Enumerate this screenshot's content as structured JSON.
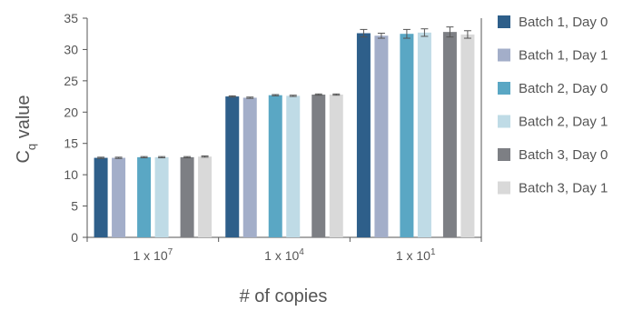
{
  "chart_data": {
    "type": "bar",
    "title": "",
    "xlabel": "# of copies",
    "ylabel_main": "C",
    "ylabel_sub": "q",
    "ylabel_rest": " value",
    "ylim": [
      0,
      35
    ],
    "yticks": [
      0,
      5,
      10,
      15,
      20,
      25,
      30,
      35
    ],
    "grid": false,
    "legend_position": "right",
    "categories": [
      {
        "base": "1 x 10",
        "exp": "7"
      },
      {
        "base": "1 x 10",
        "exp": "4"
      },
      {
        "base": "1 x 10",
        "exp": "1"
      }
    ],
    "series": [
      {
        "name": "Batch 1, Day 0",
        "color": "#2e5f8a",
        "values": [
          12.7,
          22.5,
          32.6
        ],
        "errors": [
          0.1,
          0.1,
          0.6
        ]
      },
      {
        "name": "Batch 1, Day 1",
        "color": "#a3aec9",
        "values": [
          12.7,
          22.3,
          32.2
        ],
        "errors": [
          0.1,
          0.1,
          0.4
        ]
      },
      {
        "name": "Batch 2, Day 0",
        "color": "#5aa7c4",
        "values": [
          12.8,
          22.7,
          32.5
        ],
        "errors": [
          0.1,
          0.1,
          0.7
        ]
      },
      {
        "name": "Batch 2, Day 1",
        "color": "#bfdbe6",
        "values": [
          12.8,
          22.6,
          32.7
        ],
        "errors": [
          0.1,
          0.1,
          0.6
        ]
      },
      {
        "name": "Batch 3, Day 0",
        "color": "#7d7f84",
        "values": [
          12.8,
          22.8,
          32.8
        ],
        "errors": [
          0.1,
          0.1,
          0.8
        ]
      },
      {
        "name": "Batch 3, Day 1",
        "color": "#d9d9d9",
        "values": [
          12.9,
          22.8,
          32.4
        ],
        "errors": [
          0.1,
          0.1,
          0.6
        ]
      }
    ]
  }
}
